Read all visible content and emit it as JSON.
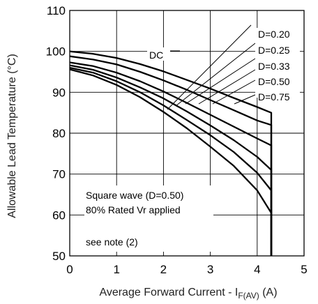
{
  "chart_data": {
    "type": "line",
    "xlabel_main": "Average Forward Current - I",
    "xlabel_sub": "F(AV)",
    "xlabel_unit": " (A)",
    "ylabel": "Allowable Lead Temperature (°C)",
    "xlim": [
      0,
      5
    ],
    "ylim": [
      50,
      110
    ],
    "x_ticks": [
      "0",
      "1",
      "2",
      "3",
      "4",
      "5"
    ],
    "y_ticks": [
      "50",
      "60",
      "70",
      "80",
      "90",
      "100",
      "110"
    ],
    "grid": true,
    "series": [
      {
        "name": "DC",
        "x": [
          0,
          0.5,
          1.0,
          1.5,
          2.0,
          2.5,
          3.0,
          3.5,
          4.0,
          4.3,
          4.3
        ],
        "y": [
          100,
          99.4,
          98.4,
          96.9,
          95.1,
          93.0,
          90.9,
          88.6,
          86.4,
          85,
          50
        ]
      },
      {
        "name": "D=0.75",
        "x": [
          0,
          0.5,
          1.0,
          1.5,
          2.0,
          2.5,
          3.0,
          3.5,
          4.0,
          4.3,
          4.3
        ],
        "y": [
          98.8,
          98.0,
          96.8,
          95.0,
          92.9,
          90.6,
          88.1,
          85.6,
          83.1,
          82,
          50
        ]
      },
      {
        "name": "D=0.50",
        "x": [
          0,
          0.5,
          1.0,
          1.5,
          2.0,
          2.5,
          3.0,
          3.5,
          4.0,
          4.3,
          4.3
        ],
        "y": [
          97.3,
          96.4,
          94.8,
          92.7,
          90.2,
          87.4,
          84.5,
          81.6,
          78.7,
          77,
          50
        ]
      },
      {
        "name": "D=0.33",
        "x": [
          0,
          0.5,
          1.0,
          1.5,
          2.0,
          2.5,
          3.0,
          3.5,
          4.0,
          4.3,
          4.3
        ],
        "y": [
          96.6,
          95.5,
          93.6,
          91.2,
          88.5,
          85.3,
          81.9,
          78.3,
          74.2,
          71,
          50
        ]
      },
      {
        "name": "D=0.25",
        "x": [
          0,
          0.5,
          1.0,
          1.5,
          2.0,
          2.5,
          3.0,
          3.5,
          4.0,
          4.3,
          4.3
        ],
        "y": [
          96.0,
          94.8,
          92.7,
          90.0,
          86.8,
          83.2,
          79.5,
          75.4,
          70.3,
          66,
          50
        ]
      },
      {
        "name": "D=0.20",
        "x": [
          0,
          0.5,
          1.0,
          1.5,
          2.0,
          2.5,
          3.0,
          3.5,
          4.0,
          4.3,
          4.3
        ],
        "y": [
          95.6,
          94.1,
          91.8,
          88.8,
          85.2,
          81.2,
          76.7,
          72.0,
          66.0,
          60.5,
          50
        ]
      }
    ],
    "curve_labels": [
      "DC",
      "D=0.20",
      "D=0.25",
      "D=0.33",
      "D=0.50",
      "D=0.75"
    ],
    "annotations": [
      "Square wave (D=0.50)",
      "80% Rated Vr applied",
      "see note (2)"
    ],
    "colors": {
      "line": "#000000",
      "grid": "#000000",
      "background": "#ffffff"
    }
  }
}
